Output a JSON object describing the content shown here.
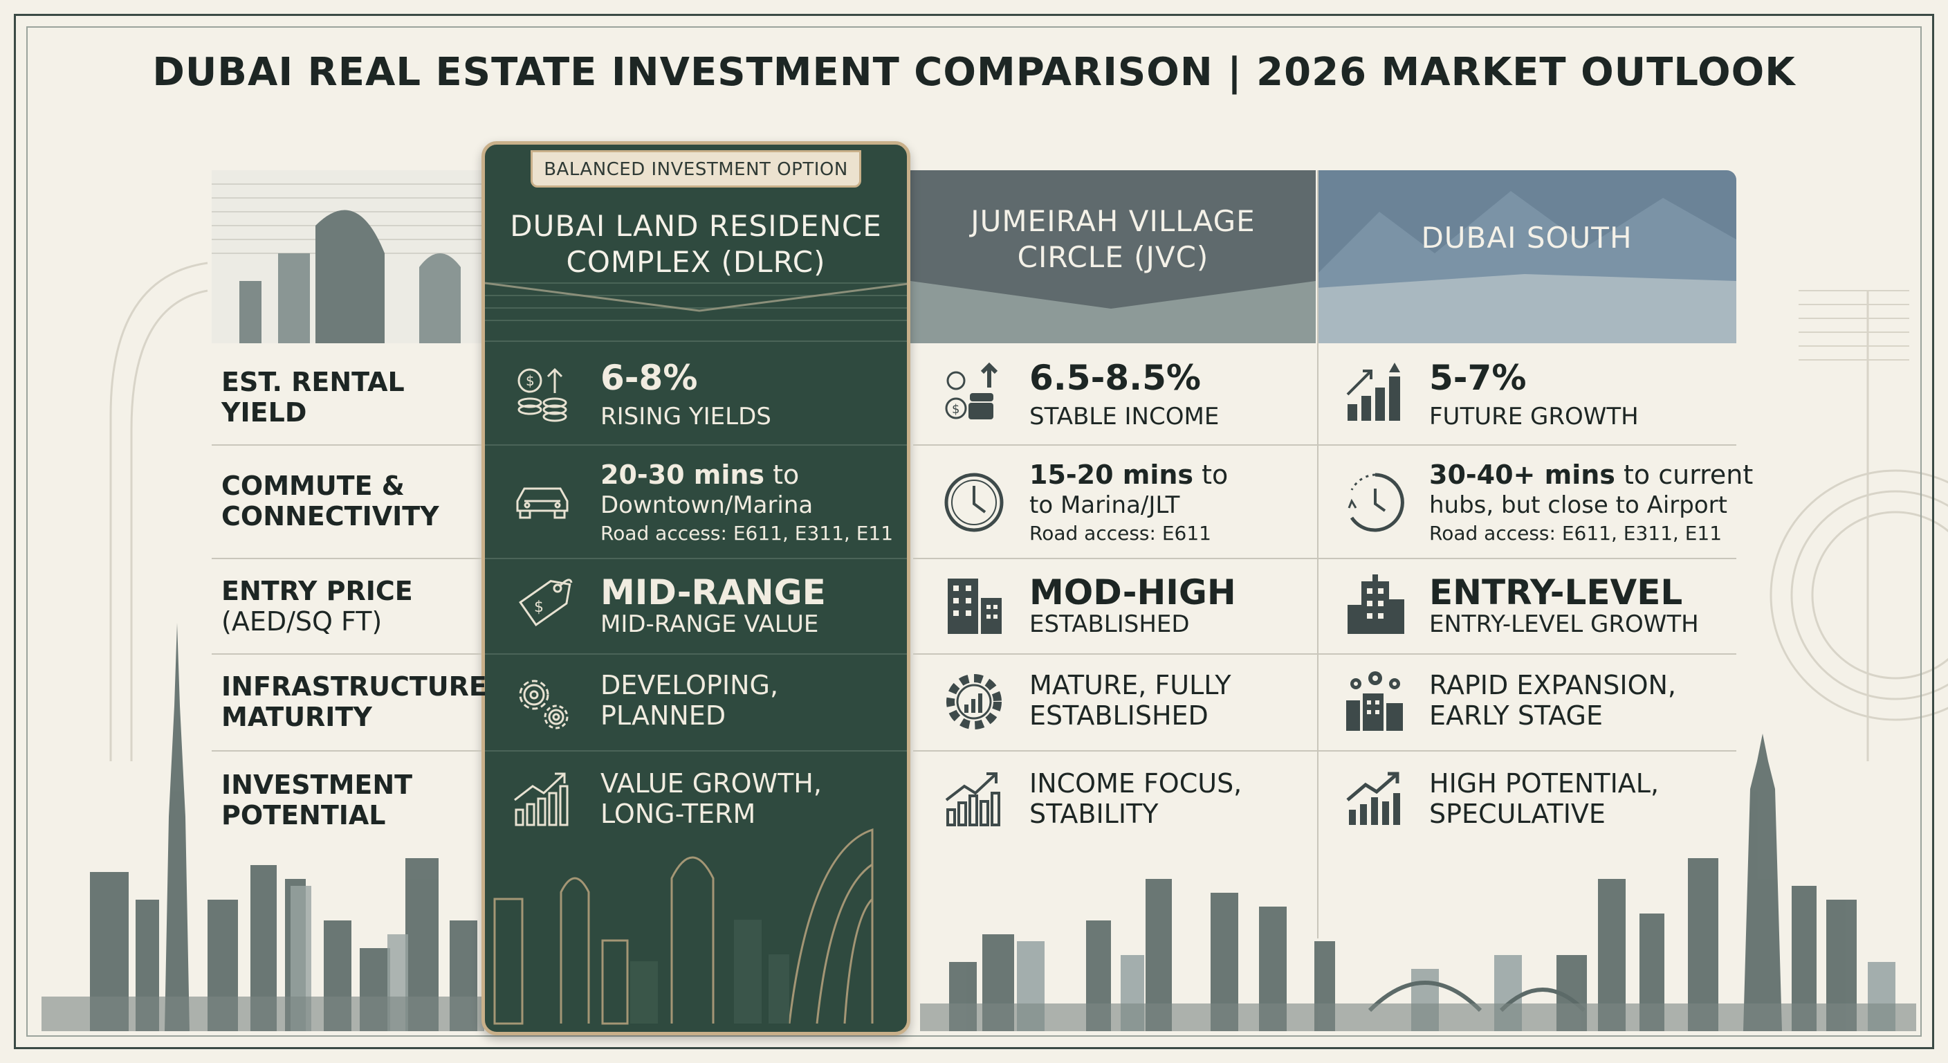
{
  "title": "DUBAI REAL ESTATE INVESTMENT COMPARISON | 2026 MARKET OUTLOOK",
  "badge": "BALANCED INVESTMENT OPTION",
  "columns": {
    "dlrc": {
      "title_line1": "DUBAI LAND RESIDENCE",
      "title_line2": "COMPLEX (DLRC)"
    },
    "jvc": {
      "title_line1": "JUMEIRAH VILLAGE",
      "title_line2": "CIRCLE (JVC)"
    },
    "south": {
      "title_line1": "DUBAI SOUTH"
    }
  },
  "rows": {
    "yield": {
      "label_line1": "EST. RENTAL",
      "label_line2": "YIELD",
      "dlrc": {
        "value": "6-8%",
        "note": "RISING YIELDS",
        "icon": "coins-arrow-icon"
      },
      "jvc": {
        "value": "6.5-8.5%",
        "note": "STABLE INCOME",
        "icon": "coins-stack-icon"
      },
      "south": {
        "value": "5-7%",
        "note": "FUTURE GROWTH",
        "icon": "growth-bars-icon"
      }
    },
    "commute": {
      "label_line1": "COMMUTE &",
      "label_line2": "CONNECTIVITY",
      "dlrc": {
        "time": "20-30 mins",
        "time_suffix": " to",
        "dest": "Downtown/Marina",
        "road": "Road access: E611, E311, E11",
        "icon": "car-icon"
      },
      "jvc": {
        "time": "15-20 mins",
        "time_suffix": " to",
        "dest": "to Marina/JLT",
        "road": "Road access: E611",
        "icon": "clock-icon"
      },
      "south": {
        "time": "30-40+ mins",
        "time_suffix": " to current",
        "dest": "hubs, but close to Airport",
        "road": "Road access: E611, E311, E11",
        "icon": "clock-dashed-icon"
      }
    },
    "price": {
      "label_line1": "ENTRY PRICE",
      "label_line2": "(AED/SQ FT)",
      "dlrc": {
        "value": "MID-RANGE",
        "note": "MID-RANGE VALUE",
        "icon": "price-tag-icon"
      },
      "jvc": {
        "value": "MOD-HIGH",
        "note": "ESTABLISHED",
        "icon": "buildings-icon"
      },
      "south": {
        "value": "ENTRY-LEVEL",
        "note": "ENTRY-LEVEL GROWTH",
        "icon": "building-icon"
      }
    },
    "infra": {
      "label_line1": "INFRASTRUCTURE",
      "label_line2": "MATURITY",
      "dlrc": {
        "line1": "DEVELOPING,",
        "line2": "PLANNED",
        "icon": "gears-icon"
      },
      "jvc": {
        "line1": "MATURE, FULLY",
        "line2": "ESTABLISHED",
        "icon": "gear-chart-icon"
      },
      "south": {
        "line1": "RAPID EXPANSION,",
        "line2": "EARLY STAGE",
        "icon": "gears-buildings-icon"
      }
    },
    "potential": {
      "label_line1": "INVESTMENT",
      "label_line2": "POTENTIAL",
      "dlrc": {
        "line1": "VALUE GROWTH,",
        "line2": "LONG-TERM",
        "icon": "trend-up-icon"
      },
      "jvc": {
        "line1": "INCOME FOCUS,",
        "line2": "STABILITY",
        "icon": "trend-up-icon"
      },
      "south": {
        "line1": "HIGH POTENTIAL,",
        "line2": "SPECULATIVE",
        "icon": "trend-up-icon"
      }
    }
  },
  "colors": {
    "background": "#f4f1e8",
    "dlrc_green": "#2f4a3f",
    "gold": "#c9b08a",
    "jvc_gray": "#5f6a6d",
    "south_blue": "#6b8397",
    "text": "#1d2624"
  }
}
